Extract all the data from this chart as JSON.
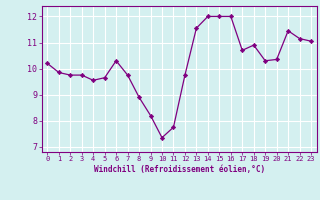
{
  "x": [
    0,
    1,
    2,
    3,
    4,
    5,
    6,
    7,
    8,
    9,
    10,
    11,
    12,
    13,
    14,
    15,
    16,
    17,
    18,
    19,
    20,
    21,
    22,
    23
  ],
  "y": [
    10.2,
    9.85,
    9.75,
    9.75,
    9.55,
    9.65,
    10.3,
    9.75,
    8.9,
    8.2,
    7.35,
    7.75,
    9.75,
    11.55,
    12.0,
    12.0,
    12.0,
    10.7,
    10.9,
    10.3,
    10.35,
    11.45,
    11.15,
    11.05
  ],
  "line_color": "#800080",
  "marker": "D",
  "marker_size": 2.2,
  "bg_color": "#d4f0f0",
  "grid_color": "#b0d8d8",
  "ylabel_ticks": [
    7,
    8,
    9,
    10,
    11,
    12
  ],
  "xlabel": "Windchill (Refroidissement éolien,°C)",
  "xlim": [
    -0.5,
    23.5
  ],
  "ylim": [
    6.8,
    12.4
  ],
  "tick_color": "#800080",
  "label_color": "#800080",
  "font_family": "monospace",
  "xtick_fontsize": 5.0,
  "ytick_fontsize": 6.0,
  "xlabel_fontsize": 5.5
}
